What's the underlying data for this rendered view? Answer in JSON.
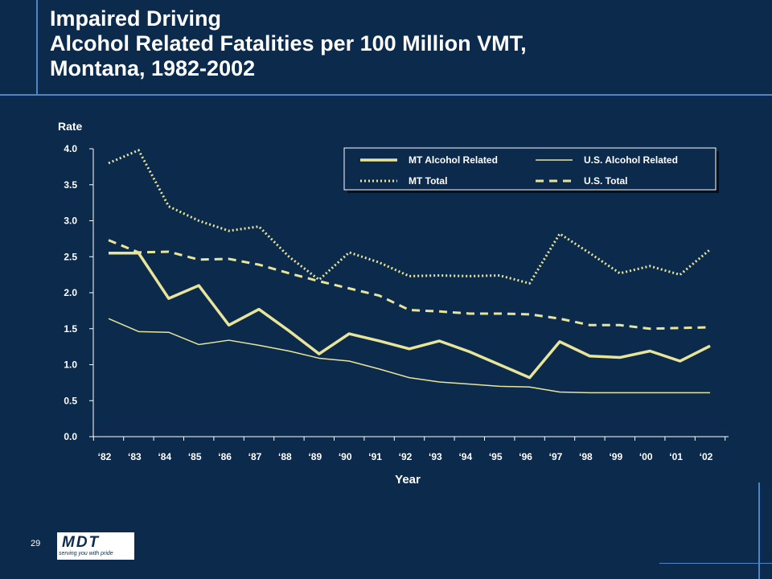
{
  "page": {
    "title_lines": [
      "Impaired Driving",
      "Alcohol Related Fatalities per 100 Million VMT,",
      "Montana, 1982-2002"
    ],
    "page_number": "29",
    "logo": {
      "text": "MDT",
      "tagline": "serving you with pride"
    }
  },
  "colors": {
    "background": "#0b2a4c",
    "series": "#e8e59a",
    "accent_line": "#4a86c8"
  },
  "chart_data": {
    "type": "line",
    "title": "Impaired Driving Alcohol Related Fatalities per 100 Million VMT, Montana, 1982-2002",
    "xlabel": "Year",
    "ylabel": "Rate",
    "ylim": [
      0,
      4
    ],
    "yticks": [
      "0.0",
      "0.5",
      "1.0",
      "1.5",
      "2.0",
      "2.5",
      "3.0",
      "3.5",
      "4.0"
    ],
    "categories": [
      "‘82",
      "‘83",
      "‘84",
      "‘85",
      "‘86",
      "‘87",
      "‘88",
      "‘89",
      "‘90",
      "‘91",
      "‘92",
      "‘93",
      "‘94",
      "‘95",
      "‘96",
      "‘97",
      "‘98",
      "‘99",
      "‘00",
      "‘01",
      "‘02"
    ],
    "legend_position": "top-right",
    "grid": false,
    "series": [
      {
        "name": "MT Alcohol Related",
        "style": "thick",
        "values": [
          2.55,
          2.55,
          1.92,
          2.1,
          1.55,
          1.77,
          1.47,
          1.15,
          1.43,
          1.33,
          1.22,
          1.33,
          1.18,
          1.0,
          0.82,
          1.32,
          1.12,
          1.1,
          1.19,
          1.05,
          1.26
        ]
      },
      {
        "name": "U.S. Alcohol Related",
        "style": "thin",
        "values": [
          1.64,
          1.46,
          1.45,
          1.28,
          1.34,
          1.27,
          1.19,
          1.09,
          1.05,
          0.94,
          0.82,
          0.76,
          0.73,
          0.7,
          0.69,
          0.62,
          0.61,
          0.61,
          0.61,
          0.61,
          0.61
        ]
      },
      {
        "name": "MT Total",
        "style": "dotted",
        "values": [
          3.8,
          3.98,
          3.2,
          3.0,
          2.86,
          2.92,
          2.5,
          2.18,
          2.56,
          2.42,
          2.23,
          2.24,
          2.23,
          2.24,
          2.13,
          2.82,
          2.55,
          2.27,
          2.37,
          2.25,
          2.6
        ]
      },
      {
        "name": "U.S. Total",
        "style": "dashed",
        "values": [
          2.73,
          2.56,
          2.57,
          2.46,
          2.47,
          2.39,
          2.27,
          2.16,
          2.06,
          1.96,
          1.76,
          1.74,
          1.71,
          1.71,
          1.7,
          1.64,
          1.55,
          1.55,
          1.5,
          1.51,
          1.52
        ]
      }
    ]
  }
}
